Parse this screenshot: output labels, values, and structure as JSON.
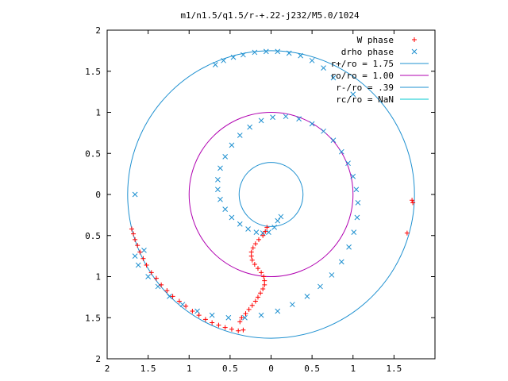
{
  "chart_data": {
    "type": "scatter",
    "title": "m1/n1.5/q1.5/r-+.22-j232/M5.0/1024",
    "xlim": [
      -2,
      2
    ],
    "ylim": [
      -2,
      2
    ],
    "xticks": [
      -2,
      -1.5,
      -1,
      -0.5,
      0,
      0.5,
      1,
      1.5
    ],
    "xtick_labels": [
      "2",
      "1.5",
      "1",
      "0.5",
      "0",
      "0.5",
      "1",
      "1.5"
    ],
    "yticks": [
      2,
      1.5,
      1,
      0.5,
      0,
      -0.5,
      -1,
      -1.5,
      -2
    ],
    "ytick_labels": [
      "2",
      "1.5",
      "1",
      "0.5",
      "0",
      "0.5",
      "1",
      "1.5",
      "2"
    ],
    "grid": false,
    "legend_position": "top-right",
    "legend": [
      {
        "label": "W phase",
        "kind": "plus",
        "color": "#ff0000"
      },
      {
        "label": "drho phase",
        "kind": "cross",
        "color": "#1e90d0"
      },
      {
        "label": "r+/ro = 1.75",
        "kind": "line",
        "color": "#1e90d0"
      },
      {
        "label": "ro/ro = 1.00",
        "kind": "line",
        "color": "#b000b0"
      },
      {
        "label": "r-/ro = .39",
        "kind": "line",
        "color": "#1e90d0"
      },
      {
        "label": "rc/ro = NaN",
        "kind": "line",
        "color": "#00c8d0"
      }
    ],
    "circles": [
      {
        "name": "r+/ro",
        "radius": 1.75,
        "color": "#1e90d0"
      },
      {
        "name": "ro/ro",
        "radius": 1.0,
        "color": "#b000b0"
      },
      {
        "name": "r-/ro",
        "radius": 0.39,
        "color": "#1e90d0"
      }
    ],
    "series": [
      {
        "name": "W phase",
        "marker": "plus",
        "color": "#ff0000",
        "points": [
          [
            -0.05,
            -0.4
          ],
          [
            -0.07,
            -0.45
          ],
          [
            -0.1,
            -0.5
          ],
          [
            -0.15,
            -0.55
          ],
          [
            -0.19,
            -0.6
          ],
          [
            -0.22,
            -0.65
          ],
          [
            -0.24,
            -0.7
          ],
          [
            -0.24,
            -0.75
          ],
          [
            -0.23,
            -0.8
          ],
          [
            -0.2,
            -0.85
          ],
          [
            -0.16,
            -0.9
          ],
          [
            -0.12,
            -0.95
          ],
          [
            -0.09,
            -1.0
          ],
          [
            -0.08,
            -1.05
          ],
          [
            -0.08,
            -1.1
          ],
          [
            -0.1,
            -1.15
          ],
          [
            -0.13,
            -1.2
          ],
          [
            -0.16,
            -1.25
          ],
          [
            -0.19,
            -1.3
          ],
          [
            -0.23,
            -1.35
          ],
          [
            -0.27,
            -1.4
          ],
          [
            -0.31,
            -1.45
          ],
          [
            -0.36,
            -1.5
          ],
          [
            -0.38,
            -1.55
          ],
          [
            -1.7,
            -0.42
          ],
          [
            -1.68,
            -0.48
          ],
          [
            -1.66,
            -0.55
          ],
          [
            -1.63,
            -0.62
          ],
          [
            -1.6,
            -0.7
          ],
          [
            -1.56,
            -0.78
          ],
          [
            -1.52,
            -0.86
          ],
          [
            -1.46,
            -0.95
          ],
          [
            -1.4,
            -1.02
          ],
          [
            -1.34,
            -1.1
          ],
          [
            -1.27,
            -1.17
          ],
          [
            -1.2,
            -1.24
          ],
          [
            -1.12,
            -1.3
          ],
          [
            -1.04,
            -1.36
          ],
          [
            -0.96,
            -1.42
          ],
          [
            -0.88,
            -1.47
          ],
          [
            -0.8,
            -1.52
          ],
          [
            -0.72,
            -1.56
          ],
          [
            -0.64,
            -1.59
          ],
          [
            -0.56,
            -1.62
          ],
          [
            -0.48,
            -1.64
          ],
          [
            -0.4,
            -1.66
          ],
          [
            -0.34,
            -1.65
          ],
          [
            1.72,
            -0.07
          ],
          [
            1.73,
            -0.1
          ],
          [
            1.66,
            -0.47
          ]
        ]
      },
      {
        "name": "drho phase",
        "marker": "cross",
        "color": "#1e90d0",
        "points": [
          [
            0.08,
            -0.32
          ],
          [
            0.12,
            -0.27
          ],
          [
            0.04,
            -0.4
          ],
          [
            -0.03,
            -0.46
          ],
          [
            -0.1,
            -0.47
          ],
          [
            -0.18,
            -0.46
          ],
          [
            -0.28,
            -0.42
          ],
          [
            -0.38,
            -0.36
          ],
          [
            -0.48,
            -0.28
          ],
          [
            -0.56,
            -0.18
          ],
          [
            -0.62,
            -0.06
          ],
          [
            -0.65,
            0.06
          ],
          [
            -0.65,
            0.18
          ],
          [
            -0.62,
            0.32
          ],
          [
            -0.56,
            0.46
          ],
          [
            -0.48,
            0.6
          ],
          [
            -0.38,
            0.72
          ],
          [
            -0.26,
            0.82
          ],
          [
            -0.12,
            0.9
          ],
          [
            0.02,
            0.94
          ],
          [
            0.18,
            0.95
          ],
          [
            0.34,
            0.92
          ],
          [
            0.5,
            0.86
          ],
          [
            0.64,
            0.77
          ],
          [
            0.76,
            0.66
          ],
          [
            0.86,
            0.52
          ],
          [
            0.94,
            0.38
          ],
          [
            1.0,
            0.22
          ],
          [
            1.04,
            0.06
          ],
          [
            1.06,
            -0.1
          ],
          [
            1.05,
            -0.28
          ],
          [
            1.01,
            -0.46
          ],
          [
            0.95,
            -0.64
          ],
          [
            0.86,
            -0.82
          ],
          [
            0.74,
            -0.98
          ],
          [
            0.6,
            -1.12
          ],
          [
            0.44,
            -1.24
          ],
          [
            0.26,
            -1.34
          ],
          [
            0.08,
            -1.42
          ],
          [
            -0.12,
            -1.47
          ],
          [
            -0.32,
            -1.5
          ],
          [
            -0.52,
            -1.5
          ],
          [
            -0.72,
            -1.47
          ],
          [
            -0.9,
            -1.42
          ],
          [
            -1.08,
            -1.34
          ],
          [
            -1.24,
            -1.24
          ],
          [
            -1.38,
            -1.12
          ],
          [
            -1.5,
            -1.0
          ],
          [
            -1.62,
            -0.86
          ],
          [
            -1.66,
            -0.75
          ],
          [
            -1.55,
            -0.68
          ],
          [
            -1.66,
            0.0
          ],
          [
            -0.68,
            1.58
          ],
          [
            -0.58,
            1.63
          ],
          [
            -0.46,
            1.67
          ],
          [
            -0.34,
            1.7
          ],
          [
            -0.2,
            1.73
          ],
          [
            -0.06,
            1.74
          ],
          [
            0.08,
            1.74
          ],
          [
            0.22,
            1.72
          ],
          [
            0.36,
            1.69
          ],
          [
            0.5,
            1.63
          ],
          [
            0.64,
            1.54
          ],
          [
            0.76,
            1.42
          ],
          [
            1.0,
            1.22
          ]
        ]
      }
    ]
  }
}
